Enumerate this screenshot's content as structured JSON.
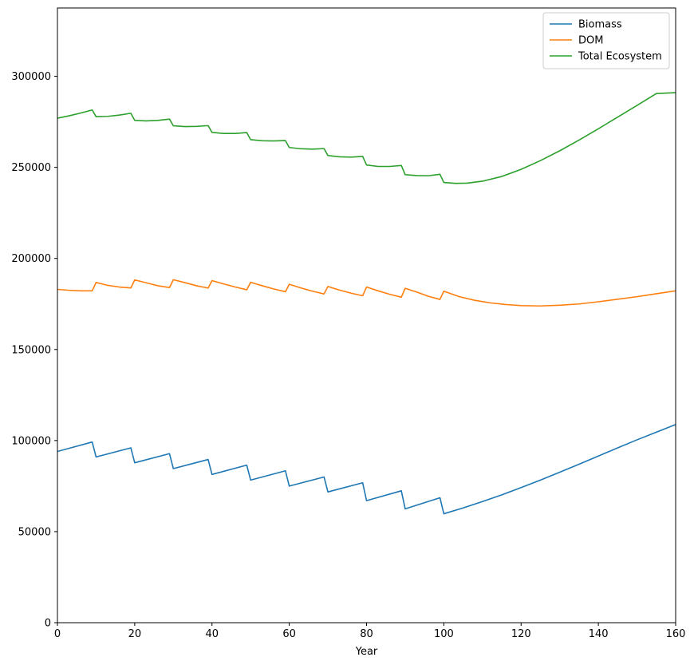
{
  "chart_data": {
    "type": "line",
    "title": "",
    "xlabel": "Year",
    "ylabel": "",
    "xlim": [
      0,
      160
    ],
    "ylim": [
      0,
      337500
    ],
    "xticks": [
      0,
      20,
      40,
      60,
      80,
      100,
      120,
      140,
      160
    ],
    "yticks": [
      0,
      50000,
      100000,
      150000,
      200000,
      250000,
      300000
    ],
    "grid": false,
    "legend_position": "top-right",
    "series": [
      {
        "name": "Biomass",
        "color": "#1f77b4",
        "points": [
          [
            0,
            94000
          ],
          [
            9,
            99200
          ],
          [
            10,
            91000
          ],
          [
            19,
            96000
          ],
          [
            20,
            87800
          ],
          [
            29,
            92800
          ],
          [
            30,
            84600
          ],
          [
            39,
            89600
          ],
          [
            40,
            81400
          ],
          [
            49,
            86500
          ],
          [
            50,
            78300
          ],
          [
            59,
            83400
          ],
          [
            60,
            75000
          ],
          [
            69,
            80000
          ],
          [
            70,
            71800
          ],
          [
            79,
            76800
          ],
          [
            80,
            67000
          ],
          [
            89,
            72400
          ],
          [
            90,
            62500
          ],
          [
            99,
            68600
          ],
          [
            100,
            59800
          ],
          [
            105,
            63000
          ],
          [
            110,
            66500
          ],
          [
            115,
            70200
          ],
          [
            120,
            74200
          ],
          [
            125,
            78300
          ],
          [
            130,
            82600
          ],
          [
            135,
            87000
          ],
          [
            140,
            91500
          ],
          [
            145,
            96000
          ],
          [
            150,
            100400
          ],
          [
            155,
            104600
          ],
          [
            160,
            108800
          ]
        ]
      },
      {
        "name": "DOM",
        "color": "#ff7f0e",
        "points": [
          [
            0,
            183000
          ],
          [
            3,
            182500
          ],
          [
            6,
            182200
          ],
          [
            9,
            182200
          ],
          [
            10,
            186800
          ],
          [
            13,
            185200
          ],
          [
            16,
            184300
          ],
          [
            19,
            183800
          ],
          [
            20,
            188200
          ],
          [
            23,
            186600
          ],
          [
            26,
            185000
          ],
          [
            29,
            184000
          ],
          [
            30,
            188300
          ],
          [
            33,
            186700
          ],
          [
            36,
            185000
          ],
          [
            39,
            183700
          ],
          [
            40,
            187800
          ],
          [
            43,
            186000
          ],
          [
            46,
            184300
          ],
          [
            49,
            182800
          ],
          [
            50,
            186900
          ],
          [
            53,
            185000
          ],
          [
            56,
            183200
          ],
          [
            59,
            181700
          ],
          [
            60,
            185800
          ],
          [
            63,
            183800
          ],
          [
            66,
            182000
          ],
          [
            69,
            180500
          ],
          [
            70,
            184600
          ],
          [
            73,
            182600
          ],
          [
            76,
            180900
          ],
          [
            79,
            179500
          ],
          [
            80,
            184300
          ],
          [
            83,
            182200
          ],
          [
            86,
            180300
          ],
          [
            89,
            178700
          ],
          [
            90,
            183600
          ],
          [
            93,
            181500
          ],
          [
            96,
            179200
          ],
          [
            99,
            177500
          ],
          [
            100,
            182000
          ],
          [
            104,
            179000
          ],
          [
            108,
            177000
          ],
          [
            112,
            175600
          ],
          [
            116,
            174700
          ],
          [
            120,
            174100
          ],
          [
            125,
            173900
          ],
          [
            130,
            174300
          ],
          [
            135,
            175000
          ],
          [
            140,
            176200
          ],
          [
            145,
            177600
          ],
          [
            150,
            179000
          ],
          [
            155,
            180600
          ],
          [
            160,
            182200
          ]
        ]
      },
      {
        "name": "Total Ecosystem",
        "color": "#2ca02c",
        "points": [
          [
            0,
            277000
          ],
          [
            3,
            278300
          ],
          [
            6,
            279800
          ],
          [
            9,
            281500
          ],
          [
            10,
            277800
          ],
          [
            13,
            278000
          ],
          [
            16,
            278700
          ],
          [
            19,
            279700
          ],
          [
            20,
            275800
          ],
          [
            23,
            275500
          ],
          [
            26,
            275800
          ],
          [
            29,
            276500
          ],
          [
            30,
            272800
          ],
          [
            33,
            272400
          ],
          [
            36,
            272500
          ],
          [
            39,
            272900
          ],
          [
            40,
            269200
          ],
          [
            43,
            268600
          ],
          [
            46,
            268600
          ],
          [
            49,
            269100
          ],
          [
            50,
            265200
          ],
          [
            53,
            264600
          ],
          [
            56,
            264500
          ],
          [
            59,
            264700
          ],
          [
            60,
            260900
          ],
          [
            63,
            260200
          ],
          [
            66,
            260000
          ],
          [
            69,
            260300
          ],
          [
            70,
            256500
          ],
          [
            73,
            255800
          ],
          [
            76,
            255600
          ],
          [
            79,
            256000
          ],
          [
            80,
            251300
          ],
          [
            83,
            250500
          ],
          [
            86,
            250500
          ],
          [
            89,
            251000
          ],
          [
            90,
            246000
          ],
          [
            93,
            245500
          ],
          [
            96,
            245400
          ],
          [
            99,
            246200
          ],
          [
            100,
            241700
          ],
          [
            103,
            241200
          ],
          [
            106,
            241300
          ],
          [
            110,
            242400
          ],
          [
            115,
            245000
          ],
          [
            120,
            248900
          ],
          [
            125,
            253700
          ],
          [
            130,
            259100
          ],
          [
            135,
            265000
          ],
          [
            140,
            271200
          ],
          [
            145,
            277600
          ],
          [
            150,
            284000
          ],
          [
            155,
            290500
          ],
          [
            160,
            291000
          ]
        ]
      }
    ]
  }
}
